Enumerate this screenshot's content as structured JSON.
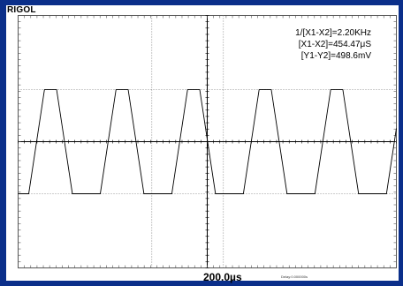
{
  "header": {
    "brand": "RIGOL"
  },
  "cursor_readout": {
    "frequency": "1/[X1-X2]=2.20KHz",
    "delta_x": "[X1-X2]=454.47μS",
    "delta_y": "[Y1-Y2]=498.6mV"
  },
  "footer": {
    "timebase": "200.0µs",
    "delay": "Delay:0.000000s"
  },
  "colors": {
    "frame": "#0b2f8a",
    "grid": "#7a7a7a",
    "trace": "#000000",
    "background": "#ffffff"
  },
  "waveform": {
    "type": "trapezoid",
    "high_level_divisions_from_center": 1.65,
    "low_level_divisions_from_center": -1.65,
    "period_divisions": 2.27
  },
  "cursors": {
    "x_positions_divisions": [
      -1.76,
      0.51
    ]
  }
}
